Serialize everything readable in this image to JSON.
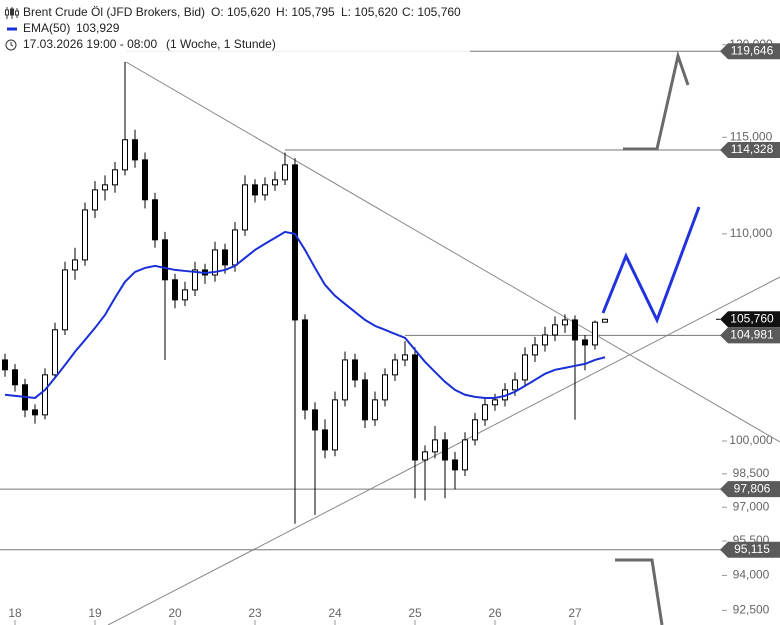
{
  "chart_data": {
    "type": "candlestick",
    "header": {
      "o": "O: 105,620",
      "h": "H: 105,795",
      "l": "L: 105,620",
      "c": "C: 105,760",
      "ema_value": "103,929",
      "period": "17.03.2026 19:00 - 08:00",
      "interval": "(1 Woche, 1 Stunde)"
    },
    "categories": [
      null,
      "18",
      null,
      null,
      null,
      null,
      null,
      null,
      null,
      "19",
      null,
      null,
      null,
      null,
      null,
      null,
      null,
      "20",
      null,
      null,
      null,
      null,
      null,
      null,
      null,
      "23",
      null,
      null,
      null,
      null,
      null,
      null,
      null,
      "24",
      null,
      null,
      null,
      null,
      null,
      null,
      null,
      "25",
      null,
      null,
      null,
      null,
      null,
      null,
      null,
      "26",
      null,
      null,
      null,
      null,
      null,
      null,
      null,
      "27",
      null,
      null,
      null
    ],
    "series": [
      {
        "name": "Brent Crude Öl (JFD Brokers, Bid)",
        "up_color": "#ffffff",
        "down_color": "#000000",
        "open": [
          103800,
          103330,
          102620,
          101440,
          101210,
          103090,
          105250,
          108190,
          108690,
          111220,
          112250,
          112510,
          113290,
          114870,
          113810,
          111740,
          109700,
          107700,
          106710,
          107200,
          108190,
          107940,
          109190,
          108440,
          110200,
          112510,
          111990,
          112510,
          112770,
          113550,
          105730,
          101440,
          100510,
          99590,
          101910,
          103800,
          102850,
          100980,
          101910,
          103090,
          103800,
          104040,
          99130,
          99500,
          100050,
          99130,
          98680,
          100050,
          100980,
          101680,
          101910,
          102380,
          102850,
          104040,
          104520,
          105000,
          105490,
          105730,
          104760,
          104520,
          105620
        ],
        "high": [
          104100,
          103600,
          102900,
          101700,
          103400,
          105600,
          108600,
          109300,
          111600,
          112700,
          113000,
          113700,
          119060,
          115400,
          114200,
          112100,
          110100,
          108000,
          107600,
          108600,
          108500,
          109600,
          109500,
          110600,
          113000,
          112800,
          112900,
          113200,
          114200,
          113900,
          106000,
          101800,
          101000,
          102300,
          104200,
          104100,
          103200,
          102300,
          103400,
          104100,
          104700,
          104400,
          99800,
          100700,
          100400,
          99500,
          100400,
          101300,
          102000,
          102200,
          102700,
          103200,
          104400,
          104900,
          105400,
          105900,
          106000,
          105950,
          105000,
          105700,
          105795
        ],
        "low": [
          103000,
          102300,
          101100,
          100800,
          101000,
          102900,
          105000,
          107700,
          108400,
          110800,
          111700,
          112100,
          113000,
          113400,
          111300,
          109300,
          103800,
          106300,
          106400,
          106900,
          107500,
          107600,
          108000,
          108100,
          109900,
          111600,
          111700,
          112200,
          112500,
          96260,
          101000,
          96650,
          99200,
          99300,
          101600,
          102500,
          100600,
          100700,
          101600,
          102800,
          103500,
          97400,
          97300,
          99200,
          97400,
          97800,
          98400,
          99800,
          100700,
          101400,
          101600,
          102100,
          102600,
          103700,
          104200,
          104700,
          105100,
          100980,
          103300,
          104300,
          105620
        ],
        "close": [
          103330,
          102620,
          101440,
          101210,
          103090,
          105250,
          108190,
          108690,
          111220,
          112250,
          112510,
          113290,
          114870,
          113810,
          111740,
          109700,
          107700,
          106710,
          107200,
          108190,
          107940,
          109190,
          108440,
          110200,
          112510,
          111990,
          112510,
          112770,
          113550,
          105730,
          101440,
          100510,
          99590,
          101910,
          103800,
          102850,
          100980,
          101910,
          103090,
          103800,
          104040,
          99130,
          99500,
          100050,
          99130,
          98680,
          100050,
          100980,
          101680,
          101910,
          102380,
          102850,
          104040,
          104520,
          105000,
          105490,
          105730,
          104760,
          104520,
          105620,
          105760
        ]
      },
      {
        "name": "EMA(50)",
        "color": "#1a2fd6",
        "values": [
          102150,
          102100,
          102050,
          102000,
          102380,
          102950,
          103560,
          104190,
          104760,
          105340,
          105970,
          106810,
          107600,
          108090,
          108290,
          108390,
          108290,
          108190,
          108140,
          108090,
          108040,
          108090,
          108190,
          108390,
          108790,
          109190,
          109500,
          109800,
          110100,
          110000,
          109190,
          108290,
          107450,
          106910,
          106510,
          106120,
          105730,
          105440,
          105250,
          105050,
          104860,
          104280,
          103710,
          103230,
          102760,
          102380,
          102150,
          102050,
          102000,
          102000,
          102100,
          102290,
          102570,
          102850,
          103140,
          103330,
          103420,
          103520,
          103610,
          103800,
          103929
        ]
      }
    ],
    "levels": [
      {
        "value": 119646,
        "label": "119,646"
      },
      {
        "value": 114328,
        "label": "114,328"
      },
      {
        "value": 104981,
        "label": "104,981"
      },
      {
        "value": 97806,
        "label": "97,806"
      },
      {
        "value": 95115,
        "label": "95,115"
      }
    ],
    "last_price": {
      "value": 105760,
      "label": "105,760"
    },
    "ylim": [
      91880,
      122500
    ],
    "log_y": true,
    "yticks": [
      {
        "value": 92500,
        "label": "92,500"
      },
      {
        "value": 94000,
        "label": "94,000"
      },
      {
        "value": 95500,
        "label": "95,500"
      },
      {
        "value": 97000,
        "label": "97,000"
      },
      {
        "value": 98500,
        "label": "98,500"
      },
      {
        "value": 100000,
        "label": "100,000"
      },
      {
        "value": 110000,
        "label": "110,000"
      },
      {
        "value": 115000,
        "label": "115,000"
      },
      {
        "value": 120000,
        "label": "120,000"
      }
    ]
  }
}
